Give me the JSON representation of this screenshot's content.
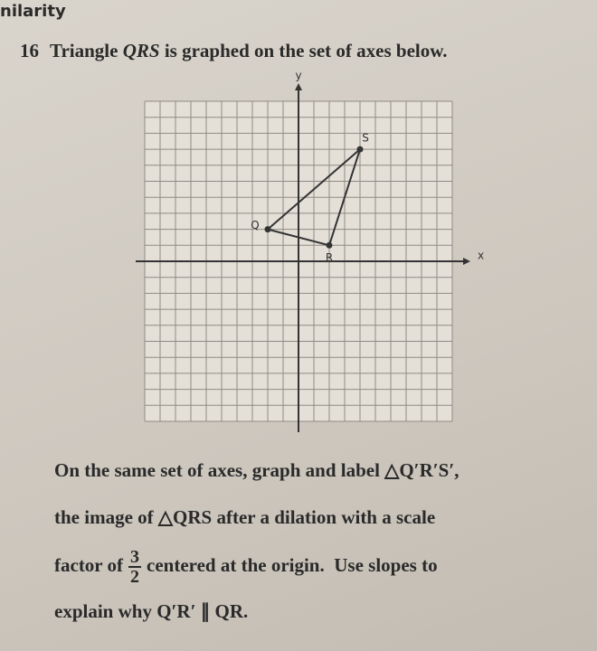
{
  "header": "nilarity",
  "question": {
    "number": "16",
    "prompt_parts": [
      "Triangle ",
      "QRS",
      " is graphed on the set of axes below."
    ]
  },
  "graph": {
    "x_label": "x",
    "y_label": "y",
    "xlim": [
      -10,
      10
    ],
    "ylim": [
      -10,
      10
    ],
    "points": [
      {
        "label": "Q",
        "x": -2,
        "y": 2
      },
      {
        "label": "R",
        "x": 2,
        "y": 1
      },
      {
        "label": "S",
        "x": 4,
        "y": 7
      }
    ]
  },
  "body": {
    "line1": "On the same set of axes, graph and label △Q′R′S′,",
    "line2": "the image of △QRS after a dilation with a scale",
    "line3": {
      "before": "factor of",
      "numerator": "3",
      "denominator": "2",
      "after": "centered at the origin.  Use slopes to"
    },
    "line4": "explain why Q′R′ ∥ QR."
  }
}
